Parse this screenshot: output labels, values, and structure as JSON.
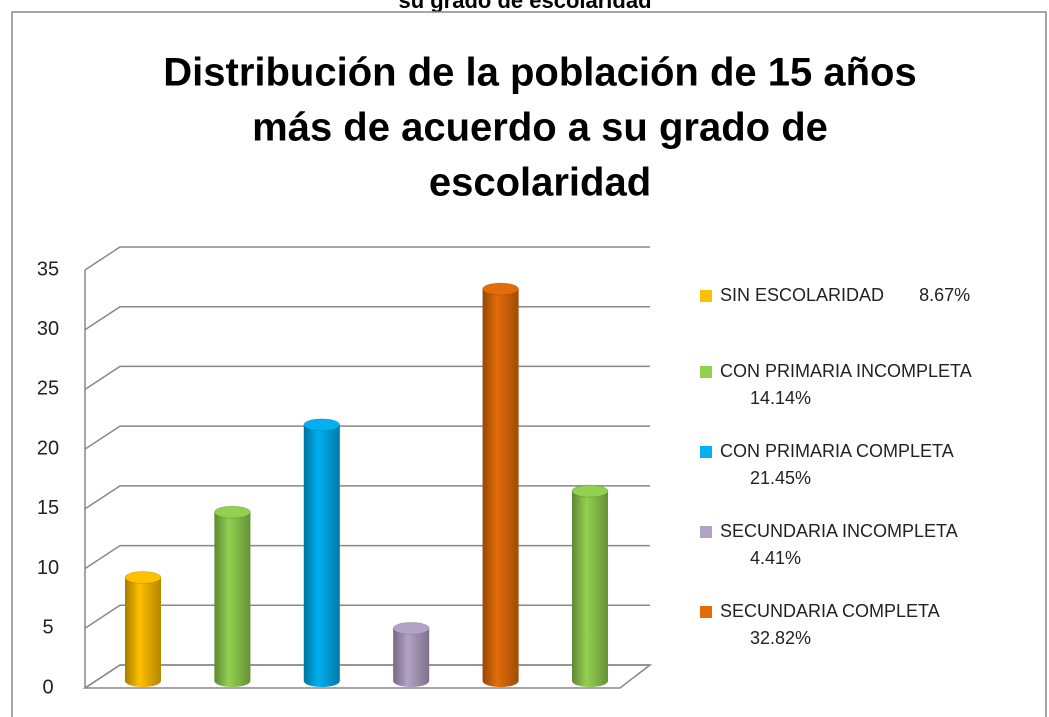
{
  "page_header": "su grado de escolaridad",
  "chart_data": {
    "type": "bar3d",
    "title": [
      "Distribución de la población de 15 años",
      "más de acuerdo a su grado de",
      "escolaridad"
    ],
    "categories": [
      "SIN ESCOLARIDAD",
      "CON PRIMARIA INCOMPLETA",
      "CON PRIMARIA COMPLETA",
      "SECUNDARIA INCOMPLETA",
      "SECUNDARIA COMPLETA",
      null
    ],
    "values": [
      8.67,
      14.14,
      21.45,
      4.41,
      32.82,
      15.9
    ],
    "value_labels": [
      "8.67%",
      "14.14%",
      "21.45%",
      "4.41%",
      "32.82%",
      null
    ],
    "colors": [
      "#ffc000",
      "#92d050",
      "#00b0f0",
      "#b3a2c7",
      "#e36c09",
      "#92d050"
    ],
    "ylim": [
      0,
      35
    ],
    "yticks": [
      0,
      5,
      10,
      15,
      20,
      25,
      30,
      35
    ],
    "grid": true,
    "legend": "right"
  }
}
